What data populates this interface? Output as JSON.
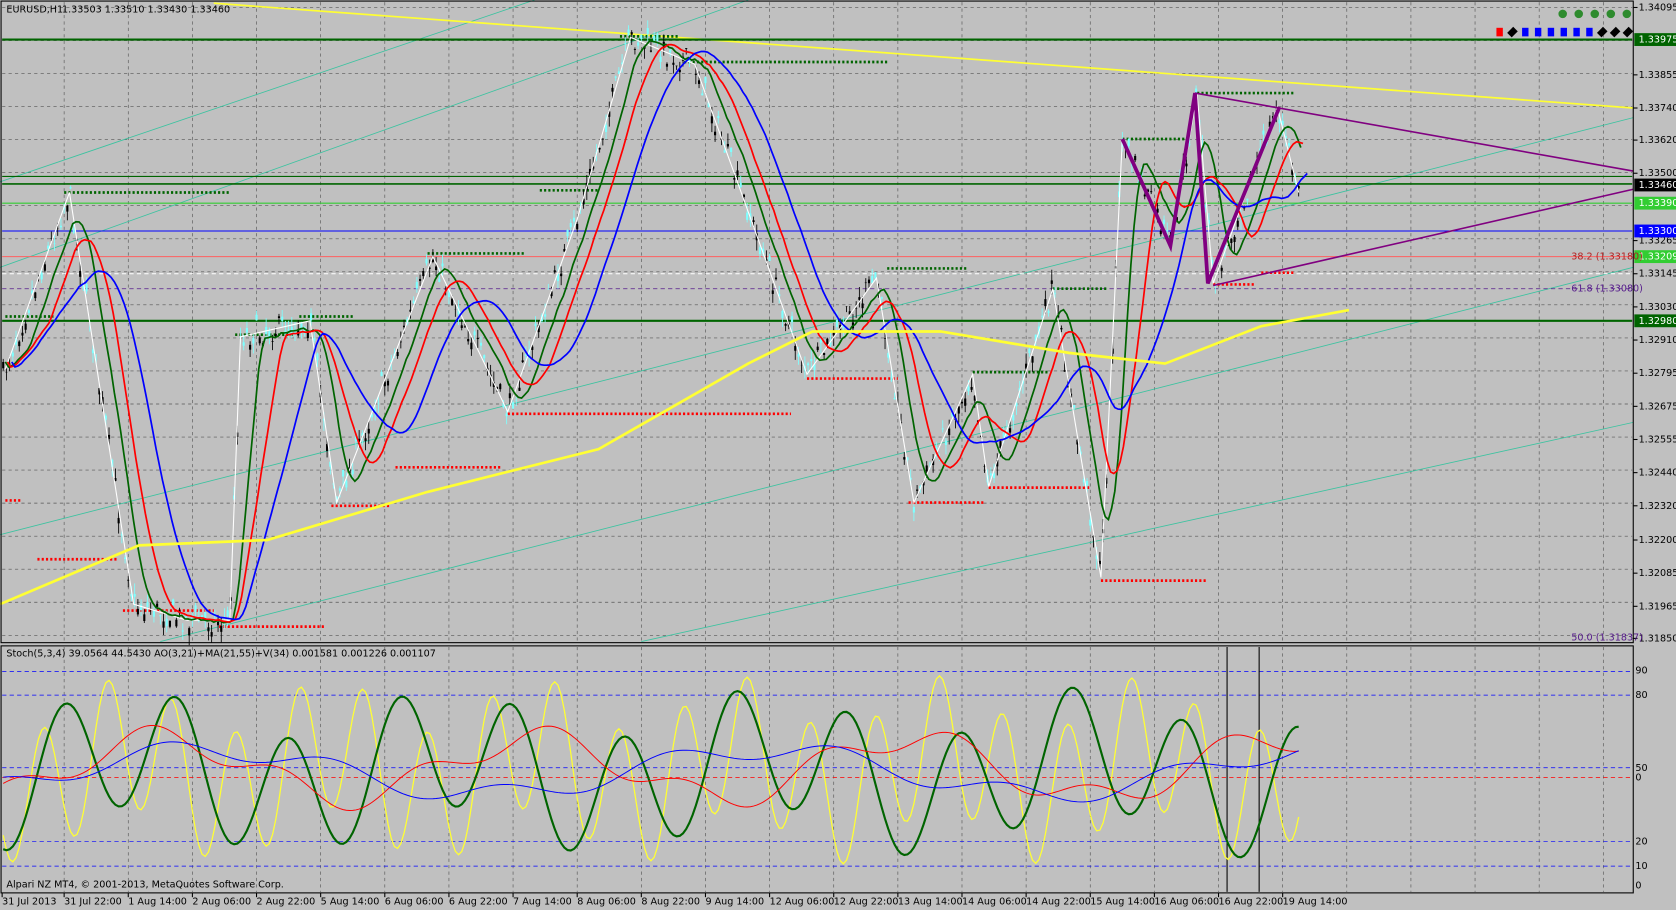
{
  "header": {
    "symbol": "EURUSD,H1",
    "ohlc": "1.33503 1.33510 1.33430 1.33460"
  },
  "price_scale": [
    "1.34095",
    "1.33855",
    "1.33740",
    "1.33620",
    "1.33500",
    "1.33265",
    "1.33145",
    "1.33030",
    "1.32910",
    "1.32795",
    "1.32675",
    "1.32555",
    "1.32440",
    "1.32320",
    "1.32200",
    "1.32085",
    "1.31965",
    "1.31850"
  ],
  "price_markers": [
    {
      "label": "1.33975",
      "color": "#006400"
    },
    {
      "label": "1.33460",
      "color": "#000000"
    },
    {
      "label": "1.33390",
      "color": "#32cd32"
    },
    {
      "label": "1.33300",
      "color": "#0000ff"
    },
    {
      "label": "1.33209",
      "color": "#32cd32"
    },
    {
      "label": "1.32980",
      "color": "#006400"
    }
  ],
  "fib_labels": [
    "38.2 (1.33180)",
    "61.8 (1.33080)",
    "50.0 (1.31837)"
  ],
  "indicator": {
    "title": "Stoch(5,3,4) 39.0564 44.5430  AO(3,21)+MA(21,55)+V(34) 0.001581 0.001226 0.001107",
    "levels": [
      "90",
      "80",
      "50",
      "0",
      "20",
      "10",
      "0"
    ]
  },
  "time_scale": [
    "31 Jul 2013",
    "31 Jul 22:00",
    "1 Aug 14:00",
    "2 Aug 06:00",
    "2 Aug 22:00",
    "5 Aug 14:00",
    "6 Aug 06:00",
    "6 Aug 22:00",
    "7 Aug 14:00",
    "8 Aug 06:00",
    "8 Aug 22:00",
    "9 Aug 14:00",
    "12 Aug 06:00",
    "12 Aug 22:00",
    "13 Aug 14:00",
    "14 Aug 06:00",
    "14 Aug 22:00",
    "15 Aug 14:00",
    "16 Aug 06:00",
    "16 Aug 22:00",
    "19 Aug 14:00"
  ],
  "copyright": "Alpari NZ MT4, © 2001-2013, MetaQuotes Software Corp."
}
